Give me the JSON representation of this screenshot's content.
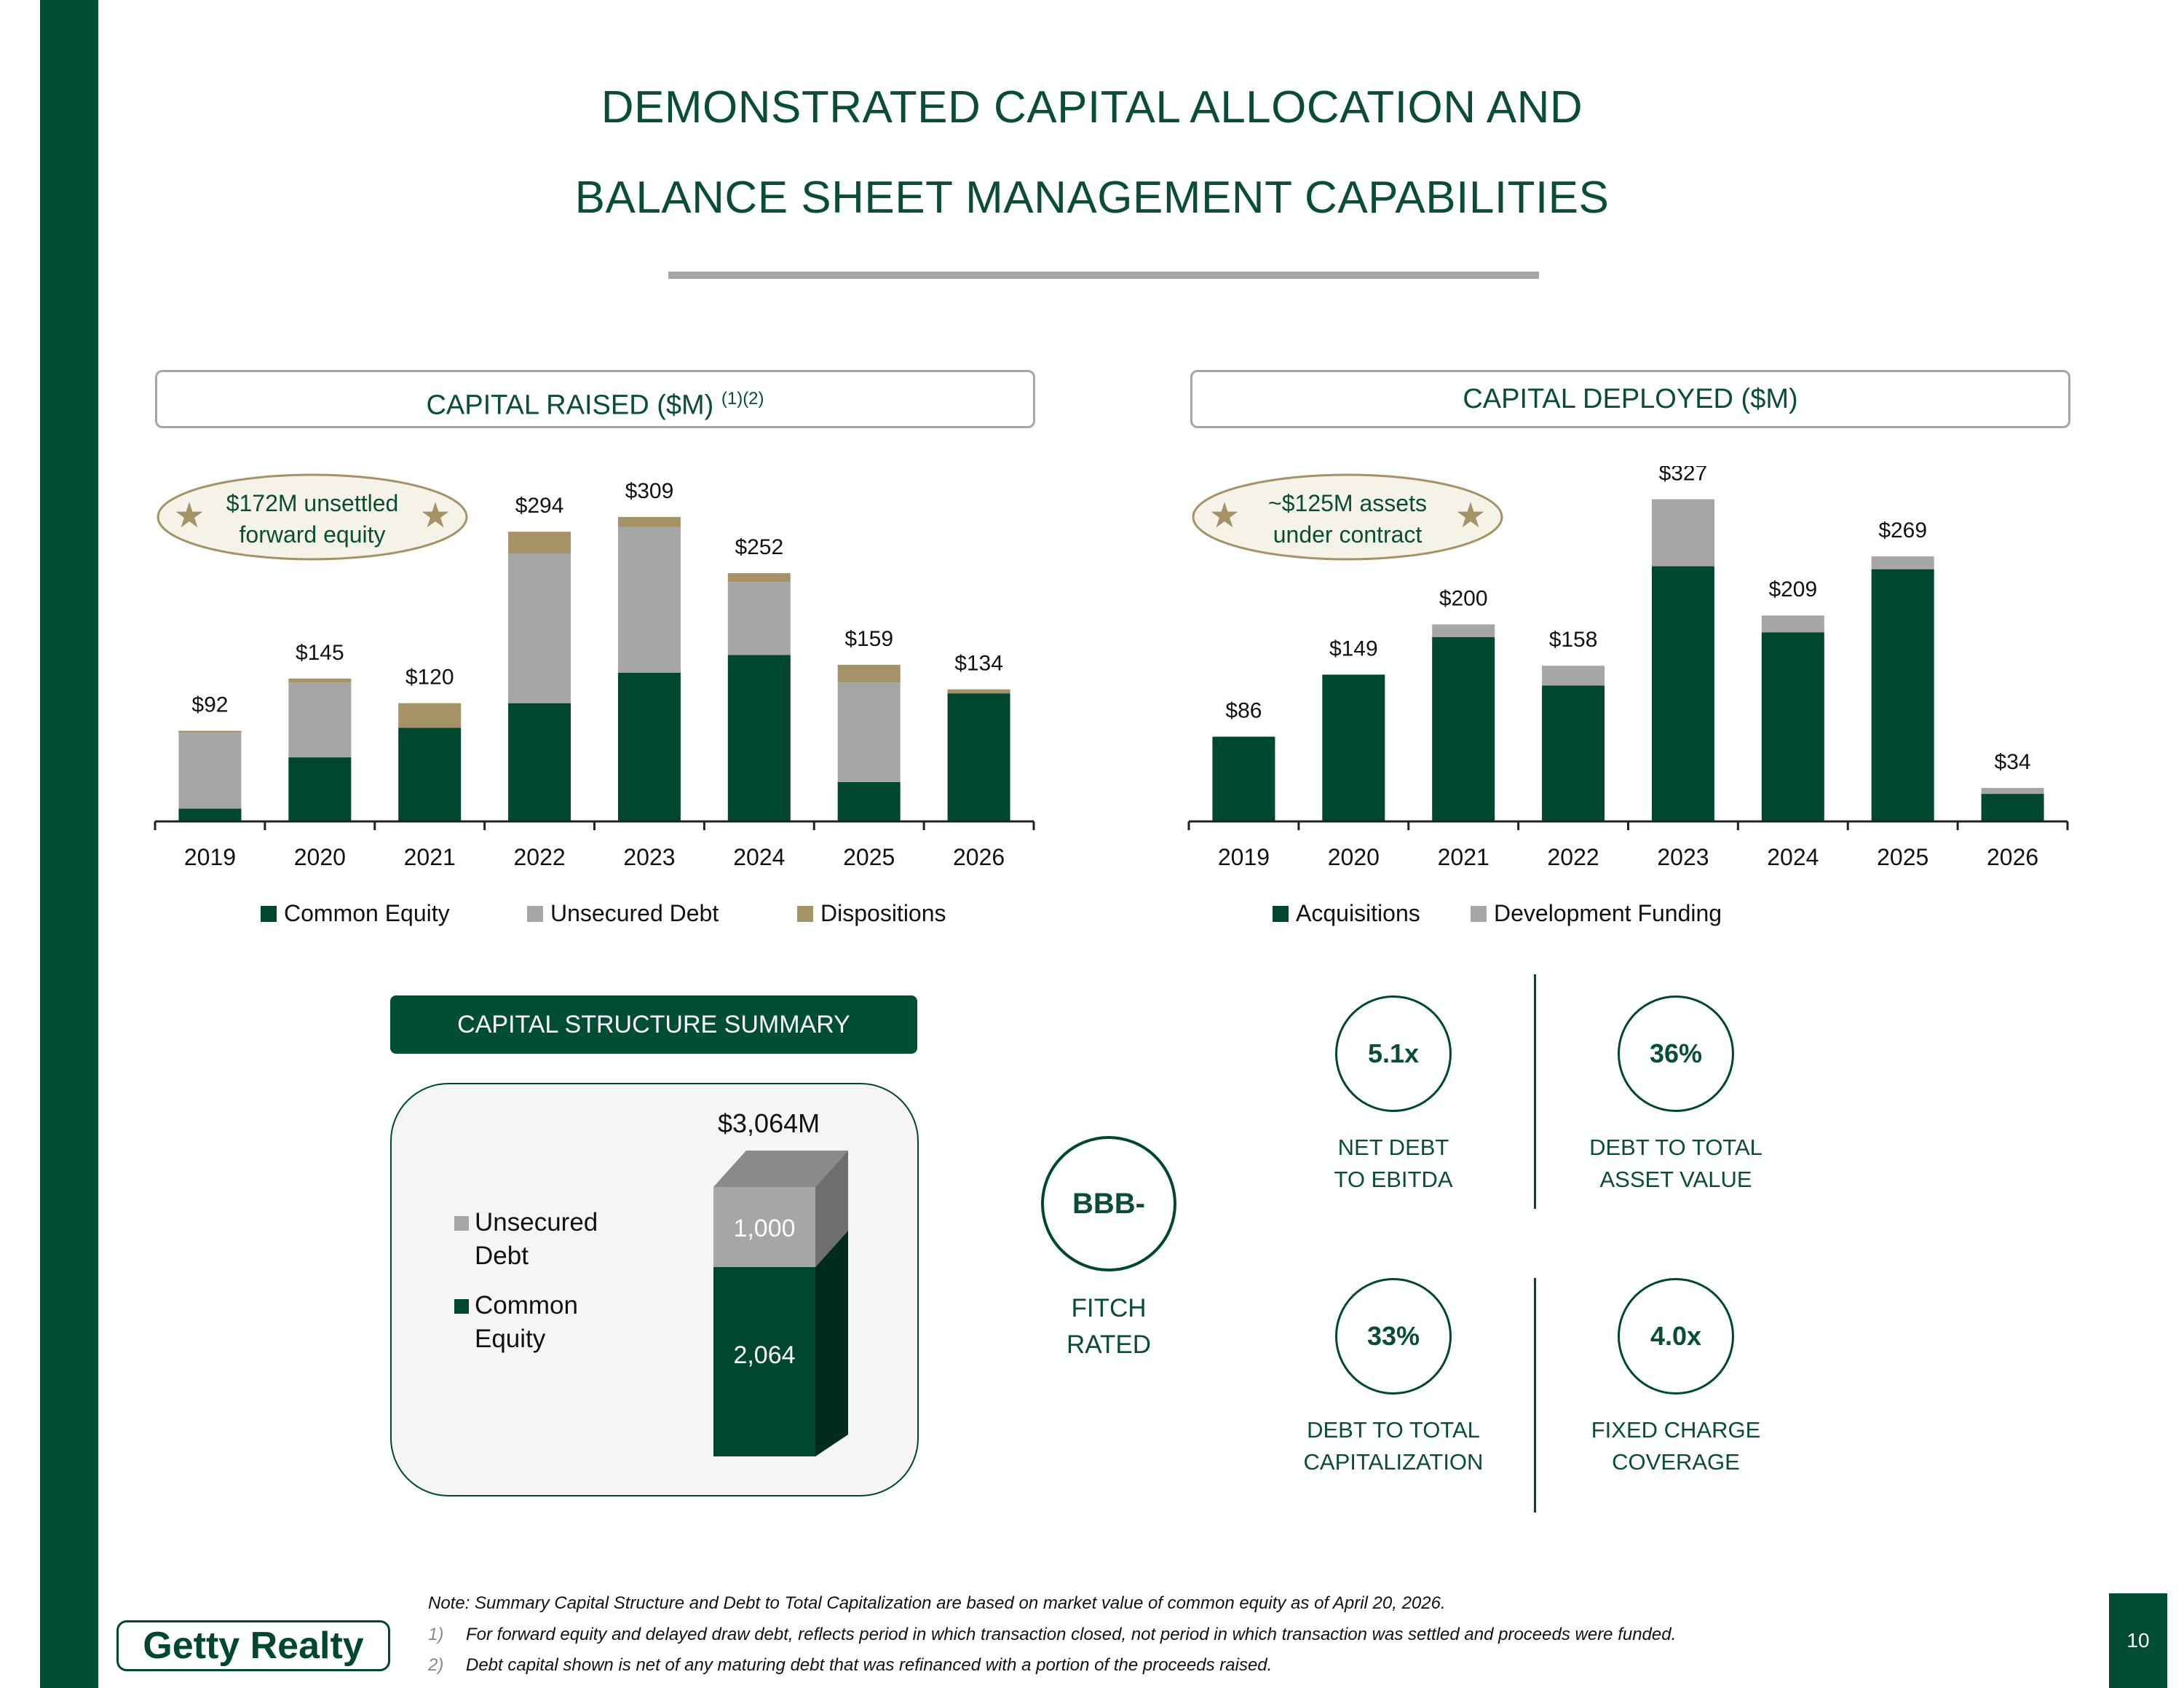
{
  "title": {
    "line1": "DEMONSTRATED CAPITAL ALLOCATION AND",
    "line2": "BALANCE SHEET MANAGEMENT CAPABILITIES"
  },
  "capital_raised": {
    "header": "CAPITAL RAISED ($M)",
    "header_sup": "(1)(2)",
    "badge_line1": "$172M unsettled",
    "badge_line2": "forward equity"
  },
  "capital_deployed": {
    "header": "CAPITAL DEPLOYED ($M)",
    "badge_line1": "~$125M assets",
    "badge_line2": "under contract"
  },
  "colors": {
    "common_equity": "#004730",
    "unsecured_debt": "#a6a6a6",
    "dispositions": "#a59266",
    "acquisitions": "#004730",
    "development_funding": "#a6a6a6",
    "star": "#a59266"
  },
  "icons": {
    "badge_icon": "star-icon"
  },
  "chart_data": [
    {
      "type": "bar",
      "stacked": true,
      "title": "CAPITAL RAISED ($M)",
      "categories": [
        "2019",
        "2020",
        "2021",
        "2022",
        "2023",
        "2024",
        "2025",
        "2026"
      ],
      "totals": [
        "$92",
        "$145",
        "$120",
        "$294",
        "$309",
        "$252",
        "$159",
        "$134"
      ],
      "series": [
        {
          "name": "Common Equity",
          "values": [
            13,
            65,
            95,
            120,
            151,
            169,
            40,
            130
          ]
        },
        {
          "name": "Unsecured Debt",
          "values": [
            77,
            76,
            0,
            152,
            148,
            74,
            101,
            0
          ]
        },
        {
          "name": "Dispositions",
          "values": [
            2,
            4,
            25,
            22,
            10,
            9,
            18,
            4
          ]
        }
      ],
      "ylim": [
        0,
        340
      ],
      "legend": "bottom"
    },
    {
      "type": "bar",
      "stacked": true,
      "title": "CAPITAL DEPLOYED ($M)",
      "categories": [
        "2019",
        "2020",
        "2021",
        "2022",
        "2023",
        "2024",
        "2025",
        "2026"
      ],
      "totals": [
        "$86",
        "$149",
        "$200",
        "$158",
        "$327",
        "$209",
        "$269",
        "$34"
      ],
      "series": [
        {
          "name": "Acquisitions",
          "values": [
            86,
            149,
            187,
            138,
            259,
            192,
            256,
            28
          ]
        },
        {
          "name": "Development Funding",
          "values": [
            0,
            0,
            13,
            20,
            68,
            17,
            13,
            6
          ]
        }
      ],
      "ylim": [
        0,
        340
      ],
      "legend": "bottom"
    }
  ],
  "capital_structure": {
    "header": "CAPITAL STRUCTURE SUMMARY",
    "total": "$3,064M",
    "legend": [
      {
        "name": "Unsecured Debt",
        "line1": "Unsecured",
        "line2": "Debt"
      },
      {
        "name": "Common Equity",
        "line1": "Common",
        "line2": "Equity"
      }
    ],
    "unsecured_debt": 1000,
    "common_equity": 2064,
    "unsecured_debt_label": "1,000",
    "common_equity_label": "2,064"
  },
  "rating": {
    "value": "BBB-",
    "label": "FITCH\nRATED"
  },
  "metrics": [
    {
      "value": "5.1x",
      "label": "NET DEBT\nTO EBITDA"
    },
    {
      "value": "36%",
      "label": "DEBT TO TOTAL\nASSET VALUE"
    },
    {
      "value": "33%",
      "label": "DEBT TO TOTAL\nCAPITALIZATION"
    },
    {
      "value": "4.0x",
      "label": "FIXED CHARGE\nCOVERAGE"
    }
  ],
  "notes": {
    "main": "Note: Summary Capital Structure and Debt to Total Capitalization are based on market value of common equity as of April 20, 2026.",
    "items": [
      {
        "num": "1)",
        "text": "For forward equity and delayed draw debt, reflects period in which transaction closed, not period in which transaction was settled and proceeds were funded."
      },
      {
        "num": "2)",
        "text": "Debt capital shown is net of any maturing debt that was refinanced with a portion of the proceeds raised."
      }
    ]
  },
  "logo": "Getty Realty",
  "page_number": "10"
}
